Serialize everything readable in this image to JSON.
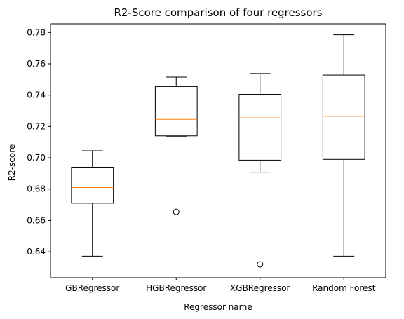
{
  "chart_data": {
    "type": "box",
    "title": "R2-Score comparison of four regressors",
    "xlabel": "Regressor name",
    "ylabel": "R2-score",
    "ylim": [
      0.6235,
      0.7855
    ],
    "yticks": [
      "0.64",
      "0.66",
      "0.68",
      "0.70",
      "0.72",
      "0.74",
      "0.76",
      "0.78"
    ],
    "categories": [
      "GBRegressor",
      "HGBRegressor",
      "XGBRegressor",
      "Random Forest"
    ],
    "boxes": [
      {
        "whisker_low": 0.6372,
        "q1": 0.671,
        "median": 0.681,
        "q3": 0.694,
        "whisker_high": 0.7045,
        "outliers": []
      },
      {
        "whisker_low": 0.7138,
        "q1": 0.714,
        "median": 0.7245,
        "q3": 0.7455,
        "whisker_high": 0.7515,
        "outliers": [
          0.6655
        ]
      },
      {
        "whisker_low": 0.6908,
        "q1": 0.6985,
        "median": 0.7255,
        "q3": 0.7405,
        "whisker_high": 0.7538,
        "outliers": [
          0.632
        ]
      },
      {
        "whisker_low": 0.6372,
        "q1": 0.699,
        "median": 0.7265,
        "q3": 0.7528,
        "whisker_high": 0.7785,
        "outliers": []
      }
    ],
    "colors": {
      "box": "#000000",
      "median": "#ff7f0e",
      "axes": "#000000",
      "background": "#ffffff"
    },
    "grid": false,
    "legend": "none"
  }
}
